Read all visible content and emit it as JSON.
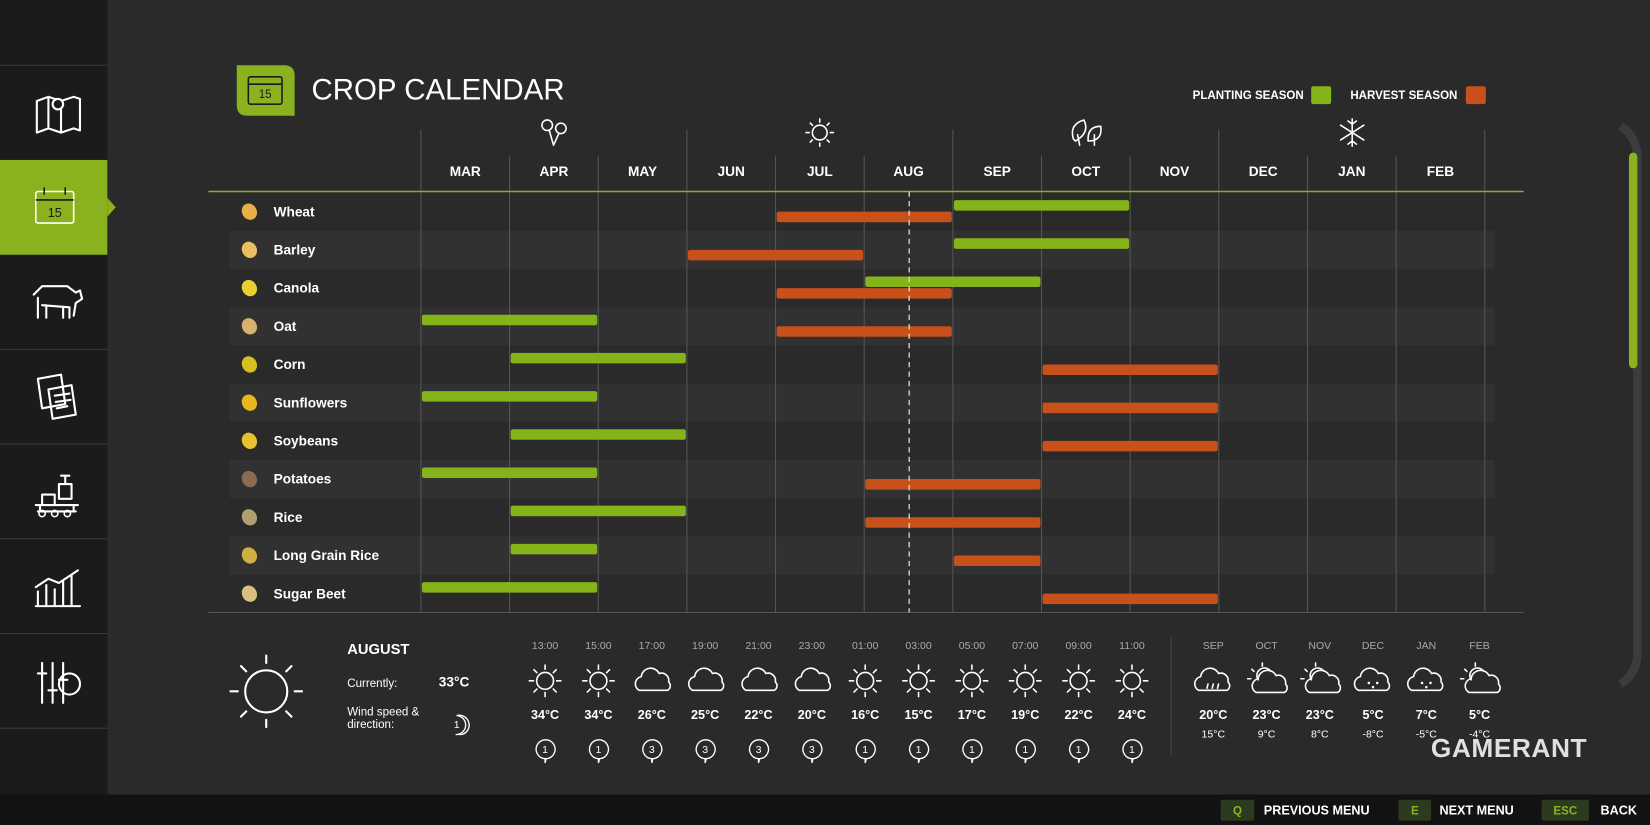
{
  "header": {
    "title": "CROP CALENDAR",
    "icon_label": "15"
  },
  "legend": {
    "planting": "PLANTING SEASON",
    "harvest": "HARVEST SEASON"
  },
  "months": [
    "MAR",
    "APR",
    "MAY",
    "JUN",
    "JUL",
    "AUG",
    "SEP",
    "OCT",
    "NOV",
    "DEC",
    "JAN",
    "FEB"
  ],
  "crops": [
    {
      "name": "Wheat",
      "planting": [
        "SEP",
        "OCT"
      ],
      "harvest": [
        "JUL",
        "AUG"
      ]
    },
    {
      "name": "Barley",
      "planting": [
        "SEP",
        "OCT"
      ],
      "harvest": [
        "JUN",
        "JUL"
      ]
    },
    {
      "name": "Canola",
      "planting": [
        "AUG",
        "SEP"
      ],
      "harvest": [
        "JUL",
        "AUG"
      ]
    },
    {
      "name": "Oat",
      "planting": [
        "MAR",
        "APR"
      ],
      "harvest": [
        "JUL",
        "AUG"
      ]
    },
    {
      "name": "Corn",
      "planting": [
        "APR",
        "MAY"
      ],
      "harvest": [
        "OCT",
        "NOV"
      ]
    },
    {
      "name": "Sunflowers",
      "planting": [
        "MAR",
        "APR"
      ],
      "harvest": [
        "OCT",
        "NOV"
      ]
    },
    {
      "name": "Soybeans",
      "planting": [
        "APR",
        "MAY"
      ],
      "harvest": [
        "OCT",
        "NOV"
      ]
    },
    {
      "name": "Potatoes",
      "planting": [
        "MAR",
        "APR"
      ],
      "harvest": [
        "AUG",
        "SEP"
      ]
    },
    {
      "name": "Rice",
      "planting": [
        "APR",
        "MAY"
      ],
      "harvest": [
        "AUG",
        "SEP"
      ]
    },
    {
      "name": "Long Grain Rice",
      "planting": [
        "APR"
      ],
      "harvest": [
        "SEP"
      ]
    },
    {
      "name": "Sugar Beet",
      "planting": [
        "MAR",
        "APR"
      ],
      "harvest": [
        "OCT",
        "NOV"
      ]
    }
  ],
  "weather": {
    "month": "AUGUST",
    "currently_label": "Currently:",
    "currently": "33°C",
    "wind_label": [
      "Wind speed &",
      "direction:"
    ],
    "wind": "1",
    "hourly": [
      {
        "time": "13:00",
        "temp": "34°C",
        "wind": "1"
      },
      {
        "time": "15:00",
        "temp": "34°C",
        "wind": "1"
      },
      {
        "time": "17:00",
        "temp": "26°C",
        "wind": "3"
      },
      {
        "time": "19:00",
        "temp": "25°C",
        "wind": "3"
      },
      {
        "time": "21:00",
        "temp": "22°C",
        "wind": "3"
      },
      {
        "time": "23:00",
        "temp": "20°C",
        "wind": "3"
      },
      {
        "time": "01:00",
        "temp": "16°C",
        "wind": "1"
      },
      {
        "time": "03:00",
        "temp": "15°C",
        "wind": "1"
      },
      {
        "time": "05:00",
        "temp": "17°C",
        "wind": "1"
      },
      {
        "time": "07:00",
        "temp": "19°C",
        "wind": "1"
      },
      {
        "time": "09:00",
        "temp": "22°C",
        "wind": "1"
      },
      {
        "time": "11:00",
        "temp": "24°C",
        "wind": "1"
      }
    ],
    "monthly": [
      {
        "month": "SEP",
        "high": "20°C",
        "low": "15°C"
      },
      {
        "month": "OCT",
        "high": "23°C",
        "low": "9°C"
      },
      {
        "month": "NOV",
        "high": "23°C",
        "low": "8°C"
      },
      {
        "month": "DEC",
        "high": "5°C",
        "low": "-8°C"
      },
      {
        "month": "JAN",
        "high": "7°C",
        "low": "-5°C"
      },
      {
        "month": "FEB",
        "high": "5°C",
        "low": "-4°C"
      }
    ]
  },
  "watermark": "GAMERANT",
  "controls": [
    {
      "key": "Q",
      "label": "PREVIOUS MENU"
    },
    {
      "key": "E",
      "label": "NEXT MENU"
    },
    {
      "key": "ESC",
      "label": "BACK"
    }
  ]
}
